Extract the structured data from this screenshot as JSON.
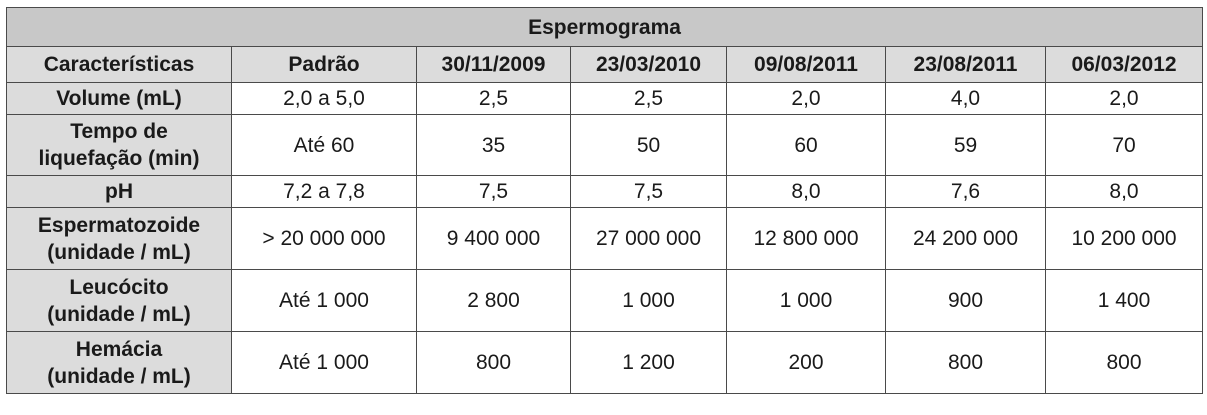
{
  "title": "Espermograma",
  "headers": [
    "Características",
    "Padrão",
    "30/11/2009",
    "23/03/2010",
    "09/08/2011",
    "23/08/2011",
    "06/03/2012"
  ],
  "rows": [
    {
      "label": [
        "Volume (mL)"
      ],
      "values": [
        "2,0 a 5,0",
        "2,5",
        "2,5",
        "2,0",
        "4,0",
        "2,0"
      ]
    },
    {
      "label": [
        "Tempo de",
        "liquefação (min)"
      ],
      "values": [
        "Até 60",
        "35",
        "50",
        "60",
        "59",
        "70"
      ]
    },
    {
      "label": [
        "pH"
      ],
      "values": [
        "7,2 a 7,8",
        "7,5",
        "7,5",
        "8,0",
        "7,6",
        "8,0"
      ]
    },
    {
      "label": [
        "Espermatozoide",
        "(unidade / mL)"
      ],
      "values": [
        "> 20 000 000",
        "9 400 000",
        "27 000 000",
        "12 800 000",
        "24 200 000",
        "10 200 000"
      ]
    },
    {
      "label": [
        "Leucócito",
        "(unidade / mL)"
      ],
      "values": [
        "Até 1 000",
        "2 800",
        "1 000",
        "1 000",
        "900",
        "1 400"
      ]
    },
    {
      "label": [
        "Hemácia",
        "(unidade / mL)"
      ],
      "values": [
        "Até 1 000",
        "800",
        "1 200",
        "200",
        "800",
        "800"
      ]
    }
  ]
}
